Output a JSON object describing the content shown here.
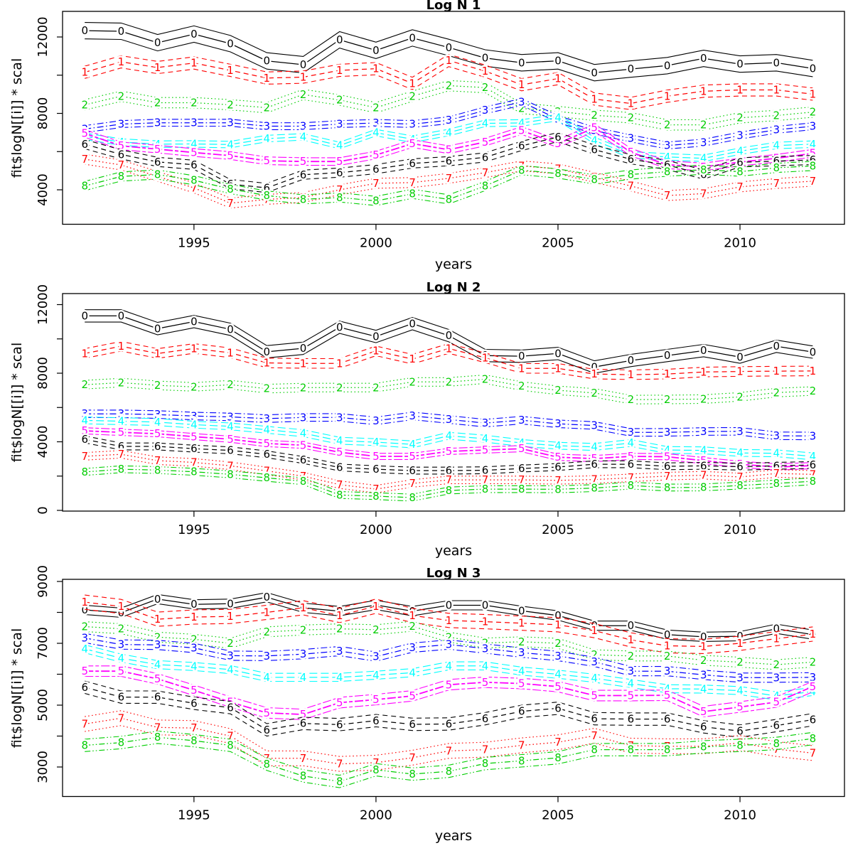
{
  "figure": {
    "background": "#ffffff",
    "border_color": "#000000"
  },
  "chart_data": {
    "type": "line",
    "xlabel": "years",
    "ylabel": "fit$logN[[i]] * scal",
    "x": [
      1992,
      1993,
      1994,
      1995,
      1996,
      1997,
      1998,
      1999,
      2000,
      2001,
      2002,
      2003,
      2004,
      2005,
      2006,
      2007,
      2008,
      2009,
      2010,
      2011,
      2012
    ],
    "xlim": [
      1991.39,
      2012.87
    ],
    "xticks": [
      1995,
      2000,
      2005,
      2010
    ],
    "legend_note": "each series = center fit line labeled with its digit at every year plus upper/lower confidence lines",
    "series_styles": [
      {
        "label": "0",
        "color": "#000000",
        "lty": "solid"
      },
      {
        "label": "1",
        "color": "#ff0000",
        "lty": "dashed"
      },
      {
        "label": "2",
        "color": "#00cd00",
        "lty": "dotted"
      },
      {
        "label": "3",
        "color": "#0000ff",
        "lty": "dotdash"
      },
      {
        "label": "4",
        "color": "#00ffff",
        "lty": "longdash"
      },
      {
        "label": "5",
        "color": "#ff00ff",
        "lty": "twodash"
      },
      {
        "label": "6",
        "color": "#000000",
        "lty": "dashed"
      },
      {
        "label": "7",
        "color": "#ff0000",
        "lty": "dotted"
      },
      {
        "label": "8",
        "color": "#00cd00",
        "lty": "dashdotdot"
      }
    ],
    "plots": [
      {
        "title": "Log N 1",
        "ylim": [
          2196,
          13340
        ],
        "yticks_all": [
          4000,
          6000,
          8000,
          10000,
          12000
        ],
        "yticks_labeled": [
          4000,
          8000,
          12000
        ],
        "series": [
          {
            "label": "0",
            "band": 430,
            "values": [
              12330,
              12300,
              11700,
              12150,
              11650,
              10750,
              10550,
              11850,
              11300,
              11950,
              11450,
              10900,
              10650,
              10750,
              10130,
              10320,
              10500,
              10880,
              10580,
              10650,
              10350
            ]
          },
          {
            "label": "1",
            "band": 320,
            "values": [
              10150,
              10700,
              10400,
              10640,
              10250,
              9850,
              9900,
              10250,
              10340,
              9570,
              10770,
              10210,
              9500,
              9820,
              8750,
              8520,
              8900,
              9160,
              9230,
              9230,
              9010
            ]
          },
          {
            "label": "2",
            "band": 270,
            "values": [
              8450,
              8900,
              8560,
              8560,
              8450,
              8300,
              8990,
              8700,
              8300,
              8900,
              9450,
              9350,
              8260,
              8100,
              7900,
              7770,
              7400,
              7400,
              7770,
              7890,
              8070
            ]
          },
          {
            "label": "3",
            "band": 180,
            "values": [
              7180,
              7440,
              7510,
              7510,
              7510,
              7330,
              7330,
              7440,
              7500,
              7440,
              7640,
              8160,
              8600,
              7700,
              7100,
              6690,
              6320,
              6470,
              6840,
              7140,
              7330
            ]
          },
          {
            "label": "4",
            "band": 170,
            "values": [
              6800,
              6500,
              6390,
              6400,
              6370,
              6680,
              6770,
              6320,
              6990,
              6650,
              7000,
              7480,
              7500,
              7780,
              6580,
              5830,
              5720,
              5650,
              6020,
              6320,
              6390
            ]
          },
          {
            "label": "5",
            "band": 200,
            "values": [
              6950,
              6300,
              6130,
              5950,
              5790,
              5520,
              5480,
              5480,
              5820,
              6420,
              6100,
              6500,
              7100,
              6420,
              7250,
              5970,
              5310,
              5200,
              5450,
              5650,
              5910
            ]
          },
          {
            "label": "6",
            "band": 240,
            "values": [
              6390,
              5850,
              5460,
              5310,
              4300,
              4100,
              4790,
              4900,
              5080,
              5380,
              5500,
              5700,
              6300,
              6760,
              6100,
              5600,
              5300,
              4800,
              5440,
              5500,
              5560
            ]
          },
          {
            "label": "7",
            "band": 260,
            "values": [
              5600,
              5300,
              4700,
              4100,
              3300,
              3500,
              3600,
              4000,
              4340,
              4380,
              4600,
              4900,
              5250,
              5100,
              4650,
              4200,
              3700,
              3800,
              4150,
              4330,
              4450
            ]
          },
          {
            "label": "8",
            "band": 240,
            "values": [
              4200,
              4700,
              4800,
              4500,
              4040,
              3700,
              3500,
              3600,
              3420,
              3790,
              3500,
              4200,
              5030,
              4850,
              4540,
              4800,
              4950,
              5050,
              4950,
              5150,
              5250
            ]
          }
        ]
      },
      {
        "title": "Log N 2",
        "ylim": [
          -41,
          12643
        ],
        "yticks_all": [
          0,
          2000,
          4000,
          6000,
          8000,
          10000,
          12000
        ],
        "yticks_labeled": [
          0,
          4000,
          8000,
          12000
        ],
        "series": [
          {
            "label": "0",
            "band": 360,
            "values": [
              11340,
              11340,
              10600,
              11010,
              10560,
              9250,
              9450,
              10680,
              10140,
              10890,
              10190,
              9030,
              8990,
              9150,
              8360,
              8740,
              9030,
              9320,
              8940,
              9570,
              9230
            ]
          },
          {
            "label": "1",
            "band": 280,
            "values": [
              9150,
              9570,
              9150,
              9440,
              9190,
              8600,
              8570,
              8570,
              9300,
              8820,
              9440,
              8900,
              8280,
              8280,
              7950,
              7910,
              7950,
              8070,
              8100,
              8120,
              8130
            ]
          },
          {
            "label": "2",
            "band": 250,
            "values": [
              7330,
              7450,
              7290,
              7200,
              7330,
              7100,
              7160,
              7160,
              7160,
              7490,
              7490,
              7650,
              7250,
              7000,
              6850,
              6460,
              6470,
              6490,
              6620,
              6870,
              6960
            ]
          },
          {
            "label": "3",
            "band": 220,
            "values": [
              5630,
              5630,
              5590,
              5500,
              5450,
              5350,
              5420,
              5420,
              5220,
              5510,
              5300,
              5090,
              5260,
              5050,
              4950,
              4550,
              4550,
              4600,
              4610,
              4350,
              4340
            ]
          },
          {
            "label": "4",
            "band": 200,
            "values": [
              5250,
              5200,
              5150,
              5000,
              4900,
              4700,
              4500,
              4060,
              3980,
              3850,
              4350,
              4180,
              3930,
              3770,
              3700,
              3930,
              3520,
              3500,
              3350,
              3330,
              3150
            ]
          },
          {
            "label": "5",
            "band": 180,
            "values": [
              4640,
              4550,
              4470,
              4300,
              4150,
              3900,
              3800,
              3390,
              3150,
              3150,
              3440,
              3520,
              3600,
              3100,
              3020,
              3150,
              3130,
              2900,
              2690,
              2530,
              2610
            ]
          },
          {
            "label": "6",
            "band": 200,
            "values": [
              4140,
              3730,
              3730,
              3600,
              3500,
              3270,
              2940,
              2500,
              2400,
              2320,
              2320,
              2340,
              2440,
              2530,
              2690,
              2690,
              2570,
              2600,
              2550,
              2600,
              2650
            ]
          },
          {
            "label": "7",
            "band": 220,
            "values": [
              3150,
              3270,
              2900,
              2800,
              2600,
              2300,
              2000,
              1500,
              1240,
              1570,
              1780,
              1780,
              1780,
              1750,
              1800,
              1900,
              2000,
              2050,
              1950,
              2150,
              2100
            ]
          },
          {
            "label": "8",
            "band": 200,
            "values": [
              2240,
              2400,
              2350,
              2250,
              2100,
              1900,
              1700,
              900,
              830,
              745,
              1160,
              1240,
              1240,
              1230,
              1300,
              1450,
              1330,
              1340,
              1450,
              1570,
              1700
            ]
          }
        ]
      },
      {
        "title": "Log N 3",
        "ylim": [
          2046,
          9069
        ],
        "yticks_all": [
          3000,
          4000,
          5000,
          6000,
          7000,
          8000,
          9000
        ],
        "yticks_labeled": [
          3000,
          5000,
          7000,
          9000
        ],
        "series": [
          {
            "label": "0",
            "band": 150,
            "values": [
              8080,
              7990,
              8430,
              8260,
              8280,
              8490,
              8150,
              8040,
              8240,
              8040,
              8230,
              8230,
              8050,
              7900,
              7570,
              7570,
              7280,
              7210,
              7230,
              7470,
              7280
            ]
          },
          {
            "label": "1",
            "band": 230,
            "values": [
              8330,
              8190,
              7780,
              7850,
              7870,
              8000,
              8150,
              7900,
              8200,
              7900,
              7740,
              7700,
              7650,
              7600,
              7410,
              7110,
              6920,
              6900,
              7000,
              7150,
              7300
            ]
          },
          {
            "label": "2",
            "band": 160,
            "values": [
              7540,
              7470,
              7200,
              7130,
              7000,
              7370,
              7430,
              7470,
              7440,
              7550,
              7200,
              7010,
              7050,
              7000,
              6630,
              6590,
              6590,
              6450,
              6390,
              6310,
              6390
            ]
          },
          {
            "label": "3",
            "band": 150,
            "values": [
              7170,
              6960,
              6950,
              6850,
              6600,
              6590,
              6650,
              6750,
              6570,
              6860,
              6960,
              6830,
              6700,
              6590,
              6400,
              6100,
              6100,
              5980,
              5890,
              5890,
              5900
            ]
          },
          {
            "label": "4",
            "band": 130,
            "values": [
              6820,
              6520,
              6310,
              6250,
              6150,
              5900,
              5900,
              5900,
              5970,
              6050,
              6270,
              6270,
              6100,
              6000,
              5870,
              5700,
              5530,
              5520,
              5470,
              5300,
              5440
            ]
          },
          {
            "label": "5",
            "band": 170,
            "values": [
              6100,
              6100,
              5850,
              5480,
              5100,
              4750,
              4700,
              5080,
              5180,
              5300,
              5660,
              5740,
              5700,
              5600,
              5310,
              5310,
              5320,
              4790,
              4940,
              5100,
              5600
            ]
          },
          {
            "label": "6",
            "band": 200,
            "values": [
              5580,
              5260,
              5260,
              5060,
              4920,
              4200,
              4410,
              4370,
              4500,
              4380,
              4390,
              4560,
              4800,
              4900,
              4560,
              4550,
              4550,
              4300,
              4160,
              4340,
              4530
            ]
          },
          {
            "label": "7",
            "band": 240,
            "values": [
              4390,
              4580,
              4280,
              4260,
              4000,
              3280,
              3280,
              3100,
              3140,
              3300,
              3520,
              3560,
              3700,
              3800,
              4010,
              3690,
              3670,
              3670,
              3780,
              3580,
              3450
            ]
          },
          {
            "label": "8",
            "band": 200,
            "values": [
              3700,
              3790,
              3960,
              3850,
              3700,
              3090,
              2710,
              2530,
              2910,
              2770,
              2860,
              3110,
              3200,
              3300,
              3560,
              3560,
              3560,
              3650,
              3700,
              3760,
              3920
            ]
          }
        ]
      }
    ]
  }
}
